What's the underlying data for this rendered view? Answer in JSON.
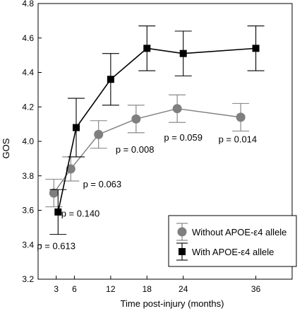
{
  "chart_data": {
    "type": "line",
    "title": "",
    "xlabel": "Time post-injury (months)",
    "ylabel": "GOS",
    "categories": [
      "3",
      "6",
      "12",
      "18",
      "24",
      "36"
    ],
    "ylim": [
      3.2,
      4.8
    ],
    "yticks": [
      "3.2",
      "3.4",
      "3.6",
      "3.8",
      "4.0",
      "4.2",
      "4.4",
      "4.6",
      "4.8"
    ],
    "grid": false,
    "legend_position": "bottom-right",
    "series": [
      {
        "name": "Without APOE-ε4 allele",
        "marker": "circle",
        "color": "#7f7f7f",
        "x": [
          2.6,
          5.4,
          10.0,
          16.2,
          23.0,
          33.5
        ],
        "y": [
          3.7,
          3.84,
          4.04,
          4.13,
          4.19,
          4.14
        ],
        "err": [
          0.08,
          0.07,
          0.08,
          0.08,
          0.08,
          0.08
        ]
      },
      {
        "name": "With APOE-ε4 allele",
        "marker": "square",
        "color": "#000000",
        "x": [
          3.3,
          6.3,
          12.0,
          18.0,
          24.0,
          36.0
        ],
        "y": [
          3.59,
          4.08,
          4.36,
          4.54,
          4.51,
          4.54
        ],
        "err": [
          0.13,
          0.17,
          0.15,
          0.13,
          0.13,
          0.13
        ]
      }
    ],
    "annotations": [
      {
        "text": "p = 0.613",
        "x": 3.0,
        "y": 3.39
      },
      {
        "text": "p = 0.140",
        "x": 7.0,
        "y": 3.58
      },
      {
        "text": "p = 0.063",
        "x": 10.6,
        "y": 3.75
      },
      {
        "text": "p = 0.008",
        "x": 16.0,
        "y": 3.95
      },
      {
        "text": "p = 0.059",
        "x": 24.0,
        "y": 4.02
      },
      {
        "text": "p = 0.014",
        "x": 33.0,
        "y": 4.01
      }
    ]
  }
}
